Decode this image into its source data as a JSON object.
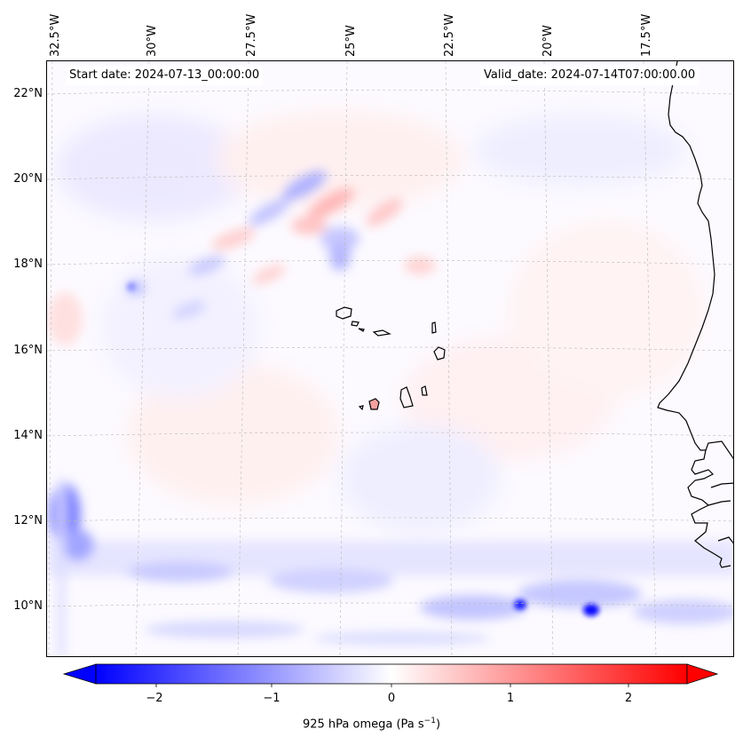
{
  "header": {
    "start_date": "Start date: 2024-07-13_00:00:00",
    "valid_date": "Valid_date: 2024-07-14T07:00:00.00"
  },
  "longitude_labels": [
    "32.5°W",
    "30°W",
    "27.5°W",
    "25°W",
    "22.5°W",
    "20°W",
    "17.5°W"
  ],
  "latitude_labels": [
    "22°N",
    "20°N",
    "18°N",
    "16°N",
    "14°N",
    "12°N",
    "10°N"
  ],
  "colorbar": {
    "title_main": "925 hPa omega (Pa s",
    "title_sup": "−1",
    "title_end": ")",
    "tick_labels": [
      "−2",
      "−1",
      "0",
      "1",
      "2"
    ],
    "range": [
      -2.75,
      2.75
    ],
    "colormap": "bwr",
    "min_color": "#0000ff",
    "mid_color": "#ffffff",
    "max_color": "#ff0000",
    "extend": "both"
  },
  "map": {
    "variable": "omega",
    "level_hpa": 925,
    "gridlines": true,
    "coastline_color": "#000000"
  }
}
